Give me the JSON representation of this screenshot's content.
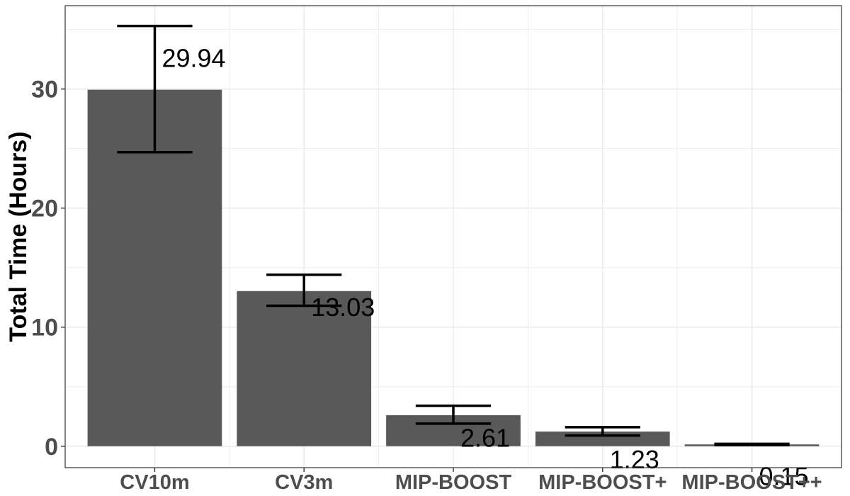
{
  "chart_data": {
    "type": "bar",
    "title": "",
    "xlabel": "",
    "ylabel": "Total Time (Hours)",
    "categories": [
      "CV10m",
      "CV3m",
      "MIP-BOOST",
      "MIP-BOOST+",
      "MIP-BOOST++"
    ],
    "values": [
      29.94,
      13.03,
      2.61,
      1.23,
      0.15
    ],
    "data_labels": [
      "29.94",
      "13.03",
      "2.61",
      "1.23",
      "0.15"
    ],
    "error_bars": [
      {
        "low": 24.7,
        "high": 35.3
      },
      {
        "low": 11.8,
        "high": 14.4
      },
      {
        "low": 1.9,
        "high": 3.4
      },
      {
        "low": 0.9,
        "high": 1.6
      },
      {
        "low": 0.1,
        "high": 0.2
      }
    ],
    "ylim": [
      -1.8,
      37.0
    ],
    "yticks": [
      0,
      10,
      20,
      30
    ],
    "ytick_labels": [
      "0",
      "10",
      "20",
      "30"
    ],
    "grid": true,
    "colors": {
      "bar": "#595959",
      "error": "#000000",
      "grid": "#ebebeb",
      "panel_border": "#333333"
    }
  }
}
